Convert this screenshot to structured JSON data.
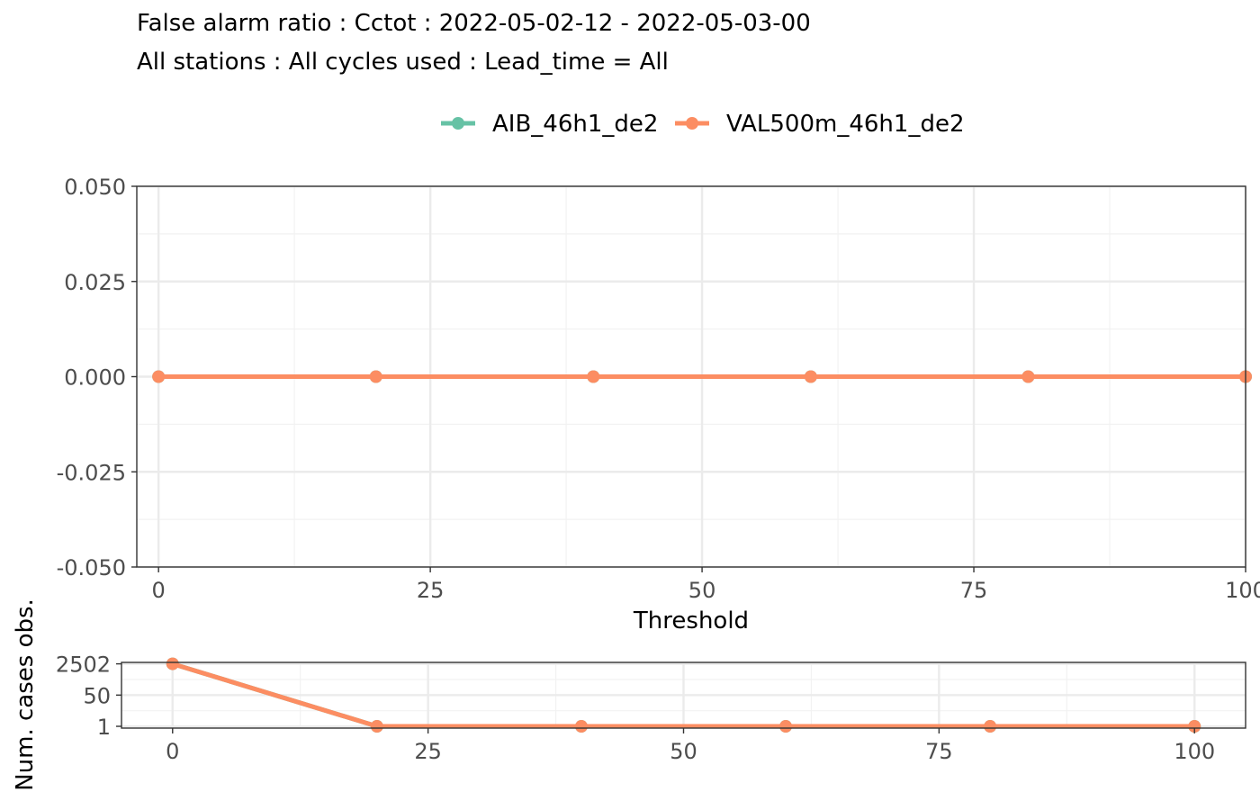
{
  "title": {
    "line1": "False alarm ratio : Cctot : 2022-05-02-12 - 2022-05-03-00",
    "line2": "All stations : All cycles used : Lead_time = All"
  },
  "legend": {
    "position": "top",
    "entries": [
      {
        "name": "AIB_46h1_de2",
        "color": "#66c2a5"
      },
      {
        "name": "VAL500m_46h1_de2",
        "color": "#fc8d62"
      }
    ]
  },
  "chart_data": [
    {
      "type": "line",
      "panel": "main",
      "xlabel": "Threshold",
      "ylabel": "",
      "xlim": [
        -2,
        100
      ],
      "ylim": [
        -0.05,
        0.05
      ],
      "x_ticks": [
        0,
        25,
        50,
        75,
        100
      ],
      "x_tick_labels": [
        "0",
        "25",
        "50",
        "75",
        "100"
      ],
      "y_ticks": [
        -0.05,
        -0.025,
        0,
        0.025,
        0.05
      ],
      "y_tick_labels": [
        "-0.050",
        "-0.025",
        "0.000",
        "0.025",
        "0.050"
      ],
      "grid": true,
      "series": [
        {
          "name": "AIB_46h1_de2",
          "color": "#66c2a5",
          "x": [
            0,
            20,
            40,
            60,
            80,
            100
          ],
          "y": [
            0,
            0,
            0,
            0,
            0,
            0
          ]
        },
        {
          "name": "VAL500m_46h1_de2",
          "color": "#fc8d62",
          "x": [
            0,
            20,
            40,
            60,
            80,
            100
          ],
          "y": [
            0,
            0,
            0,
            0,
            0,
            0
          ]
        }
      ]
    },
    {
      "type": "line",
      "panel": "counts",
      "xlabel": "",
      "ylabel": "Num. cases obs.",
      "xlim": [
        -5,
        105
      ],
      "ylim": [
        0.8,
        3000
      ],
      "y_scale": "log",
      "x_ticks": [
        0,
        25,
        50,
        75,
        100
      ],
      "x_tick_labels": [
        "0",
        "25",
        "50",
        "75",
        "100"
      ],
      "y_ticks": [
        1,
        50,
        2502
      ],
      "y_tick_labels": [
        "1",
        "50",
        "2502"
      ],
      "grid": true,
      "series": [
        {
          "name": "AIB_46h1_de2",
          "color": "#66c2a5",
          "x": [
            0,
            20,
            40,
            60,
            80,
            100
          ],
          "y": [
            2502,
            1,
            1,
            1,
            1,
            1
          ]
        },
        {
          "name": "VAL500m_46h1_de2",
          "color": "#fc8d62",
          "x": [
            0,
            20,
            40,
            60,
            80,
            100
          ],
          "y": [
            2502,
            1,
            1,
            1,
            1,
            1
          ]
        }
      ]
    }
  ]
}
